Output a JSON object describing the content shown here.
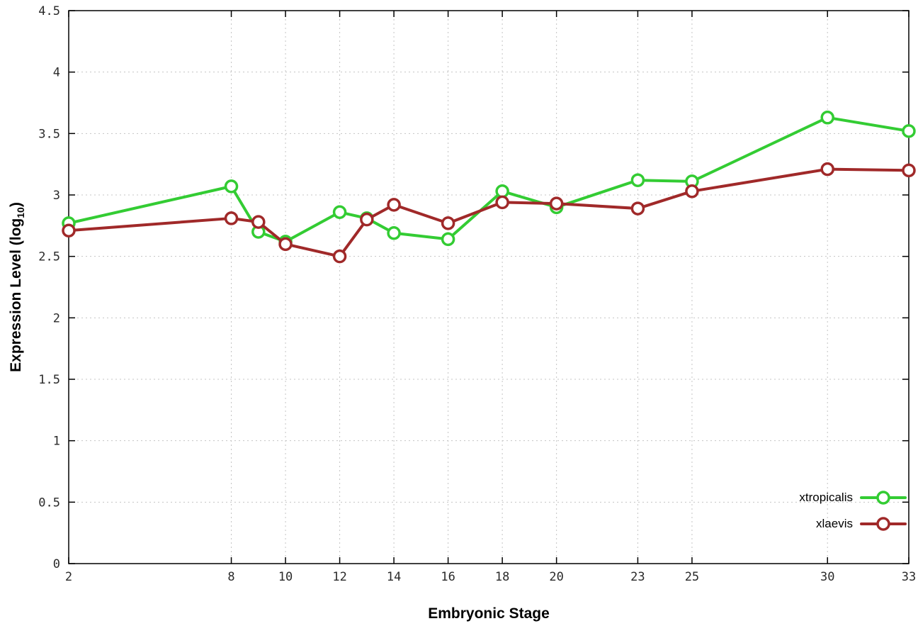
{
  "chart_data": {
    "type": "line",
    "title": "",
    "xlabel": "Embryonic Stage",
    "ylabel": "Expression Level (log10)",
    "ylabel_parts": {
      "main": "Expression Level (log",
      "sub": "10",
      "end": ")"
    },
    "x": [
      2,
      8,
      9,
      10,
      12,
      13,
      14,
      16,
      18,
      20,
      23,
      25,
      30,
      33
    ],
    "xticks": [
      2,
      8,
      10,
      12,
      14,
      16,
      18,
      20,
      23,
      25,
      30,
      33
    ],
    "yticks": [
      0,
      0.5,
      1,
      1.5,
      2,
      2.5,
      3,
      3.5,
      4,
      4.5
    ],
    "xlim": [
      2,
      33
    ],
    "ylim": [
      0,
      4.5
    ],
    "grid": true,
    "legend_position": "bottom-right",
    "series": [
      {
        "name": "xtropicalis",
        "color": "#33cc33",
        "values": [
          2.77,
          3.07,
          2.7,
          2.62,
          2.86,
          2.81,
          2.69,
          2.64,
          3.03,
          2.9,
          3.12,
          3.11,
          3.63,
          3.52
        ]
      },
      {
        "name": "xlaevis",
        "color": "#a02929",
        "values": [
          2.71,
          2.81,
          2.78,
          2.6,
          2.5,
          2.8,
          2.92,
          2.77,
          2.94,
          2.93,
          2.89,
          3.03,
          3.21,
          3.2
        ]
      }
    ]
  },
  "colors": {
    "grid": "#c4c4c4",
    "border": "#000000",
    "tick_text": "#2a2a2a",
    "marker_fill": "#ffffff"
  }
}
